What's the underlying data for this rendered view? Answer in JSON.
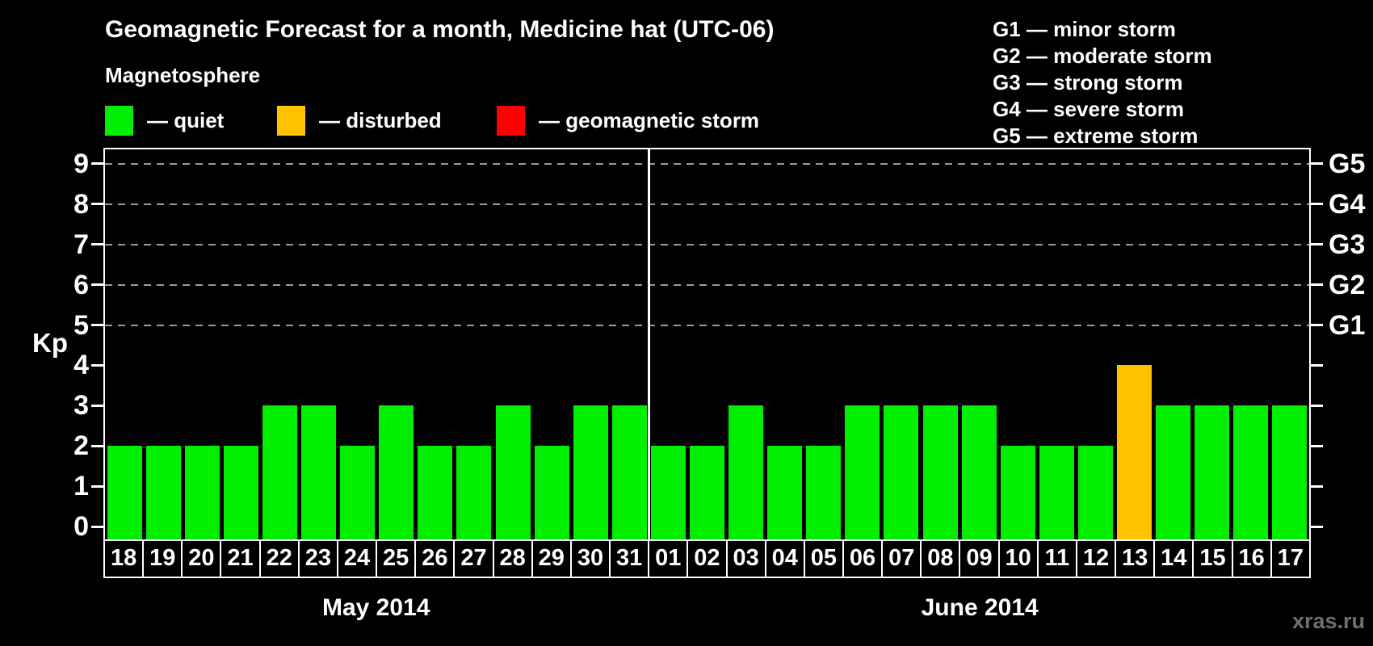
{
  "title": "Geomagnetic Forecast for a month, Medicine hat (UTC-06)",
  "magnetosphere_label": "Magnetosphere",
  "watermark": "xras.ru",
  "legend": {
    "items": [
      {
        "name": "quiet",
        "label": "— quiet",
        "color": "#00ee00"
      },
      {
        "name": "disturbed",
        "label": "— disturbed",
        "color": "#ffc200"
      },
      {
        "name": "storm",
        "label": "— geomagnetic storm",
        "color": "#ff0000"
      }
    ]
  },
  "g_scale_legend": {
    "lines": [
      "G1 — minor storm",
      "G2 — moderate storm",
      "G3 — strong storm",
      "G4 — severe storm",
      "G5 — extreme storm"
    ]
  },
  "y_axis": {
    "label": "Kp",
    "ticks": [
      0,
      1,
      2,
      3,
      4,
      5,
      6,
      7,
      8,
      9
    ]
  },
  "right_axis": {
    "labels": [
      {
        "text": "G1",
        "kp": 5
      },
      {
        "text": "G2",
        "kp": 6
      },
      {
        "text": "G3",
        "kp": 7
      },
      {
        "text": "G4",
        "kp": 8
      },
      {
        "text": "G5",
        "kp": 9
      }
    ]
  },
  "chart_data": {
    "type": "bar",
    "title": "Geomagnetic Forecast for a month, Medicine hat (UTC-06)",
    "xlabel": "",
    "ylabel": "Kp",
    "ylim": [
      0,
      9
    ],
    "grid": "dashed horizontal at Kp 5-9 only",
    "legend_position": "top-left and top-right",
    "gridlines_at_kp": [
      5,
      6,
      7,
      8,
      9
    ],
    "color_rule": {
      "quiet_kp_max": 3,
      "disturbed_kp": 4,
      "storm_kp_min": 5
    },
    "series": [
      {
        "month": "May 2014",
        "days": [
          "18",
          "19",
          "20",
          "21",
          "22",
          "23",
          "24",
          "25",
          "26",
          "27",
          "28",
          "29",
          "30",
          "31"
        ],
        "values": [
          2,
          2,
          2,
          2,
          3,
          3,
          2,
          3,
          2,
          2,
          3,
          2,
          3,
          3
        ]
      },
      {
        "month": "June 2014",
        "days": [
          "01",
          "02",
          "03",
          "04",
          "05",
          "06",
          "07",
          "08",
          "09",
          "10",
          "11",
          "12",
          "13",
          "14",
          "15",
          "16",
          "17"
        ],
        "values": [
          2,
          2,
          3,
          2,
          2,
          3,
          3,
          3,
          3,
          2,
          2,
          2,
          4,
          3,
          3,
          3,
          3
        ]
      }
    ]
  },
  "colors": {
    "quiet": "#00ee00",
    "disturbed": "#ffc200",
    "storm": "#ff0000",
    "grid": "#9a9a9a",
    "axis": "#ffffff",
    "background": "#000000",
    "watermark": "#6f6f6f"
  }
}
